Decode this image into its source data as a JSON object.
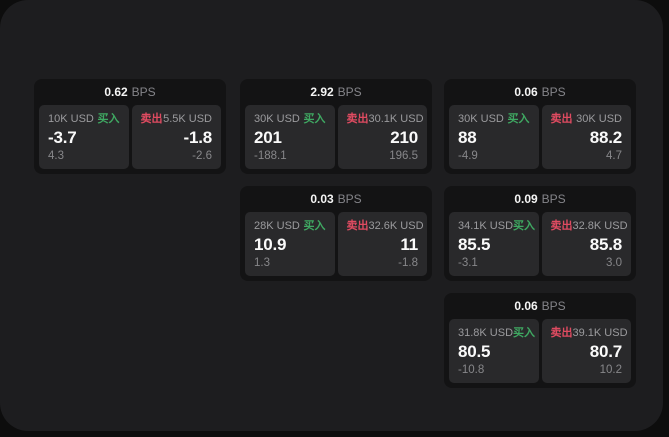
{
  "labels": {
    "bps": "BPS",
    "buy": "买入",
    "sell": "卖出"
  },
  "colors": {
    "background": "#0d0d0d",
    "window": "#1d1d1f",
    "card": "#131314",
    "panel": "#29292b",
    "buy_accent": "#3fa862",
    "sell_accent": "#e04b61"
  },
  "cards": [
    {
      "bps": "0.62",
      "buy": {
        "amount": "10K USD",
        "value": "-3.7",
        "sub": "4.3"
      },
      "sell": {
        "amount": "5.5K USD",
        "value": "-1.8",
        "sub": "-2.6"
      }
    },
    {
      "bps": "2.92",
      "buy": {
        "amount": "30K USD",
        "value": "201",
        "sub": "-188.1"
      },
      "sell": {
        "amount": "30.1K USD",
        "value": "210",
        "sub": "196.5"
      }
    },
    {
      "bps": "0.06",
      "buy": {
        "amount": "30K USD",
        "value": "88",
        "sub": "-4.9"
      },
      "sell": {
        "amount": "30K USD",
        "value": "88.2",
        "sub": "4.7"
      }
    },
    {
      "bps": "0.03",
      "buy": {
        "amount": "28K USD",
        "value": "10.9",
        "sub": "1.3"
      },
      "sell": {
        "amount": "32.6K USD",
        "value": "11",
        "sub": "-1.8"
      }
    },
    {
      "bps": "0.09",
      "buy": {
        "amount": "34.1K USD",
        "value": "85.5",
        "sub": "-3.1"
      },
      "sell": {
        "amount": "32.8K USD",
        "value": "85.8",
        "sub": "3.0"
      }
    },
    {
      "bps": "0.06",
      "buy": {
        "amount": "31.8K USD",
        "value": "80.5",
        "sub": "-10.8"
      },
      "sell": {
        "amount": "39.1K USD",
        "value": "80.7",
        "sub": "10.2"
      }
    }
  ]
}
